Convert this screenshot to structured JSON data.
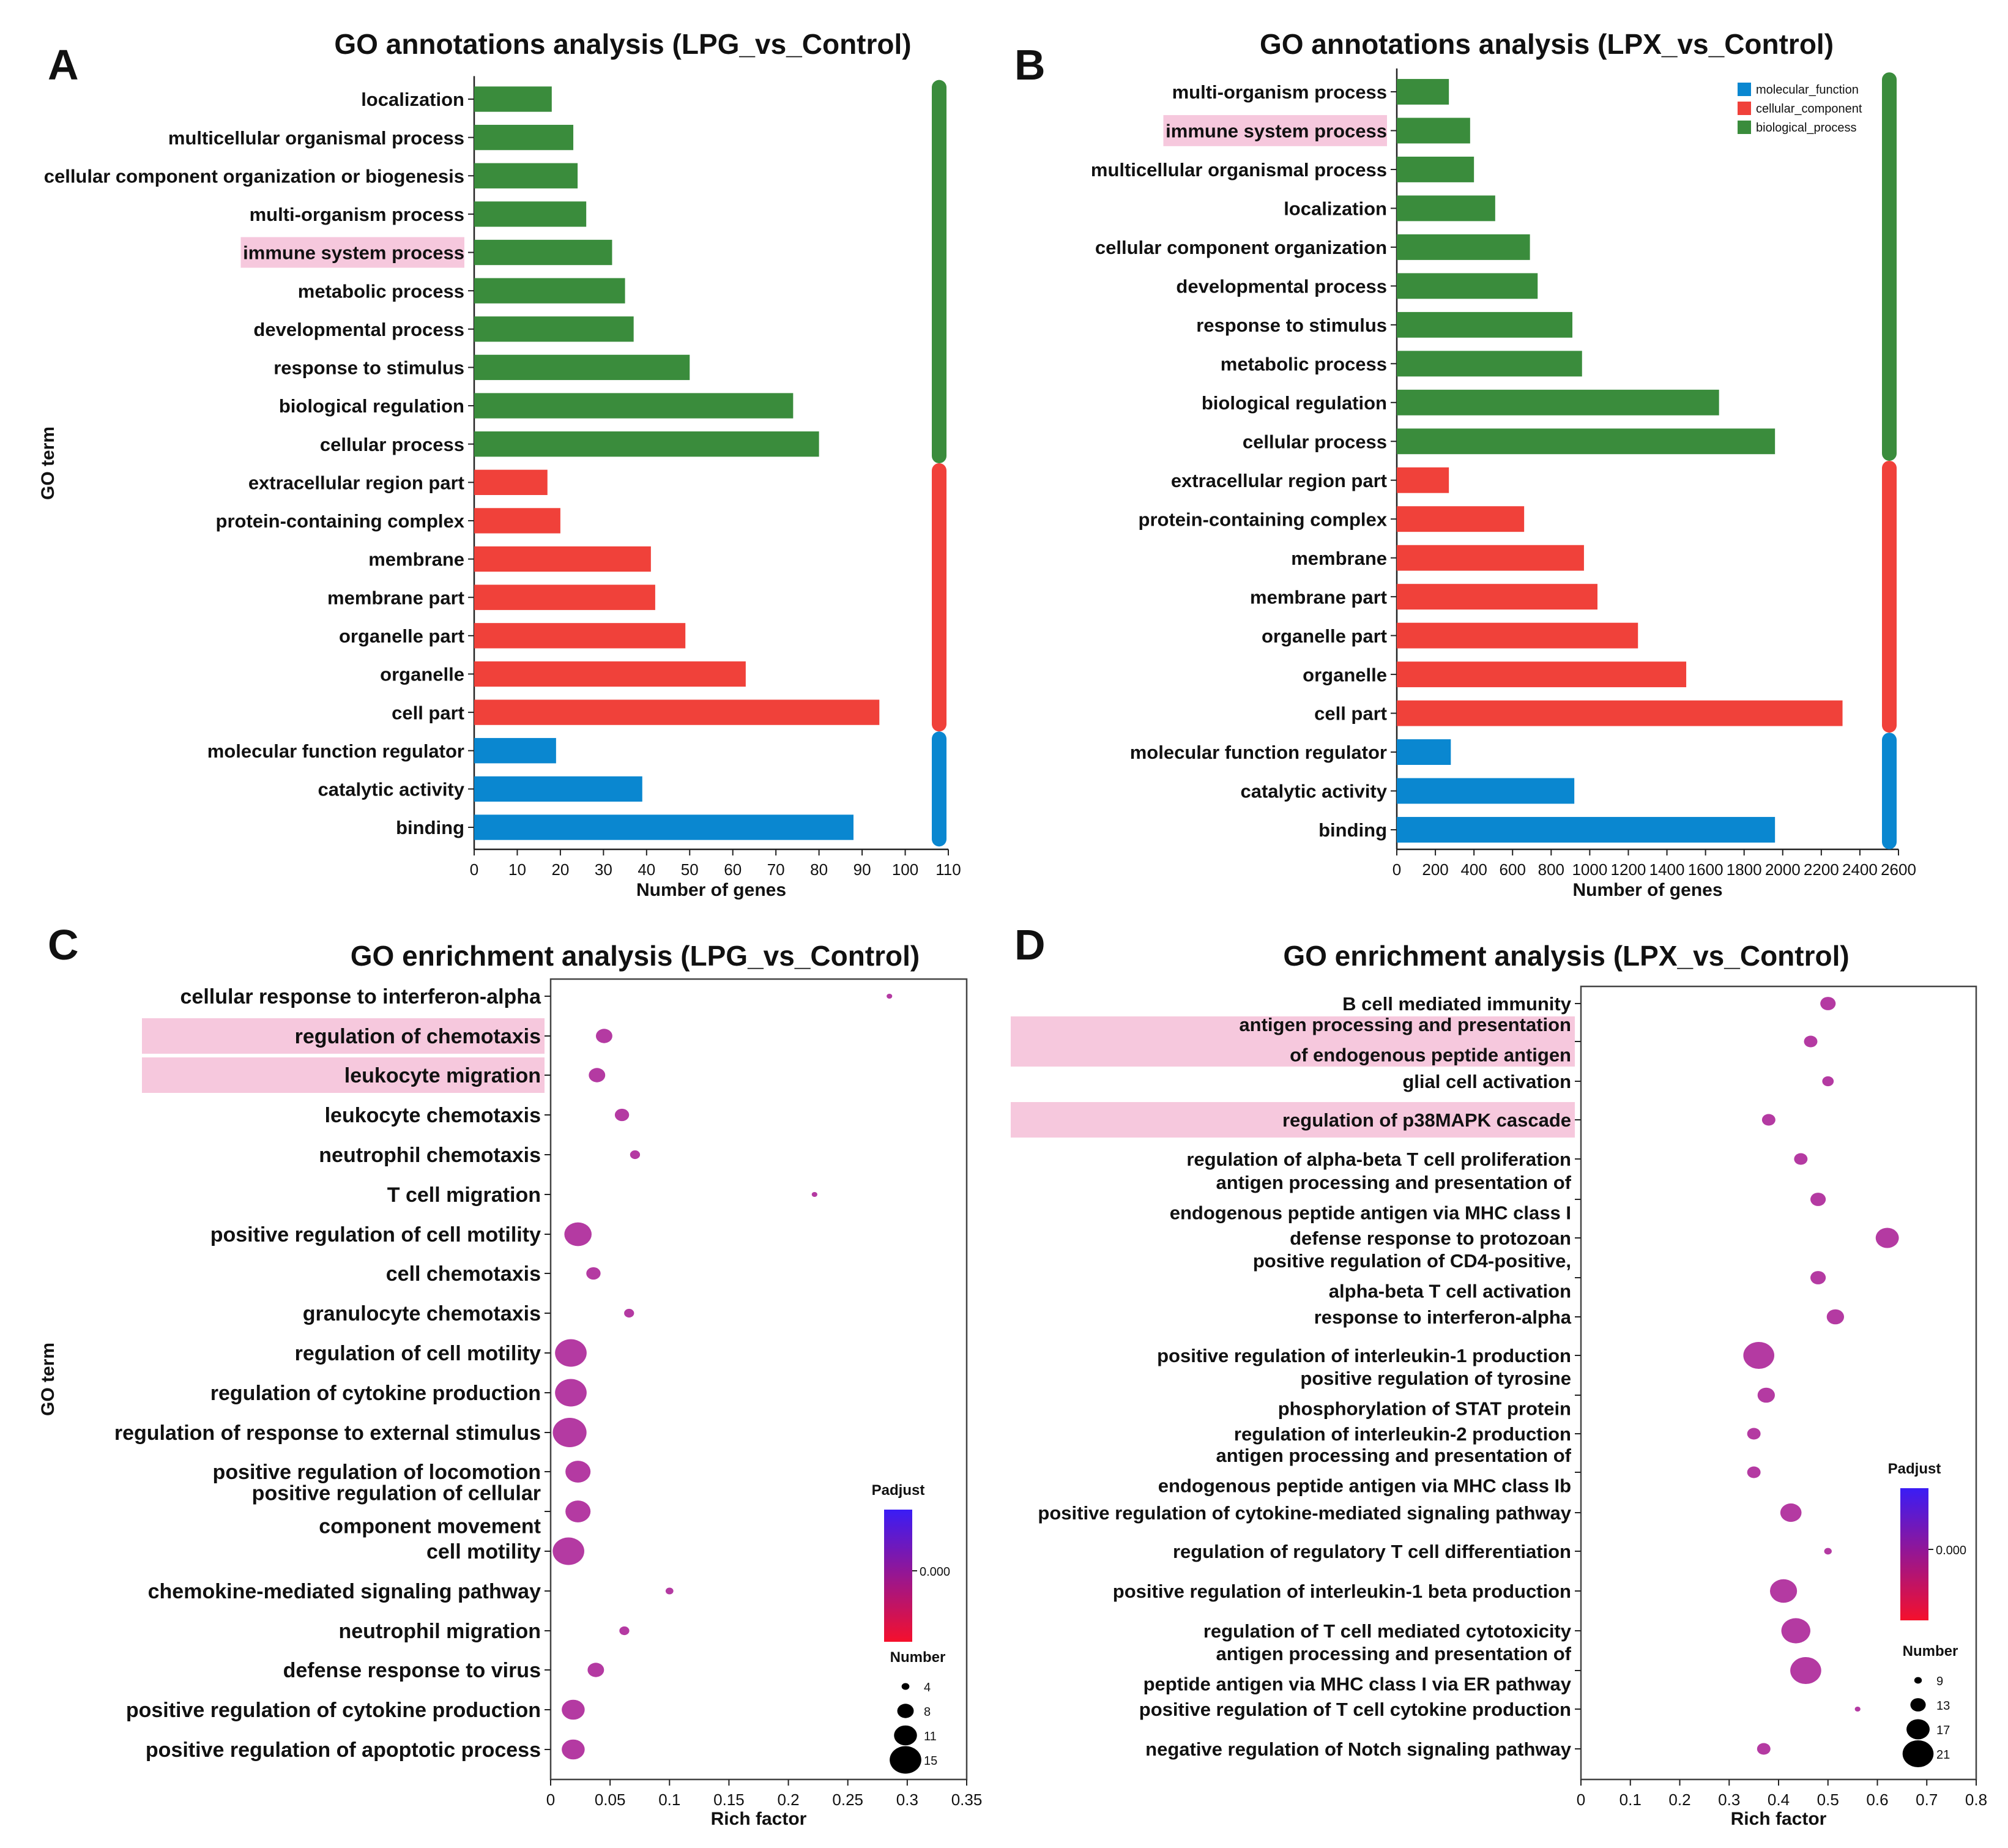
{
  "colors": {
    "molecular_function": "#0a87d0",
    "cellular_component": "#f0413a",
    "biological_process": "#3a8c3c",
    "highlight": "#f6c8dd",
    "dot": "#b43aa2",
    "padjust_top": "#3a1cf5",
    "padjust_bottom": "#f5102c"
  },
  "panels": {
    "A": "A",
    "B": "B",
    "C": "C",
    "D": "D"
  },
  "chart_data": [
    {
      "id": "A",
      "type": "bar",
      "orientation": "horizontal",
      "title": "GO annotations analysis (LPG_vs_Control)",
      "xlabel": "Number of genes",
      "ylabel": "GO term",
      "xlim": [
        0,
        110
      ],
      "xticks": [
        0,
        10,
        20,
        30,
        40,
        50,
        60,
        70,
        80,
        90,
        100,
        110
      ],
      "categories": [
        "localization",
        "multicellular organismal process",
        "cellular component organization or biogenesis",
        "multi-organism process",
        "immune system process",
        "metabolic process",
        "developmental process",
        "response to stimulus",
        "biological regulation",
        "cellular process",
        "extracellular region part",
        "protein-containing complex",
        "membrane",
        "membrane part",
        "organelle part",
        "organelle",
        "cell part",
        "molecular function regulator",
        "catalytic activity",
        "binding"
      ],
      "values": [
        18,
        23,
        24,
        26,
        32,
        35,
        37,
        50,
        74,
        80,
        17,
        20,
        41,
        42,
        49,
        63,
        94,
        19,
        39,
        88
      ],
      "groups": [
        "biological_process",
        "biological_process",
        "biological_process",
        "biological_process",
        "biological_process",
        "biological_process",
        "biological_process",
        "biological_process",
        "biological_process",
        "biological_process",
        "cellular_component",
        "cellular_component",
        "cellular_component",
        "cellular_component",
        "cellular_component",
        "cellular_component",
        "cellular_component",
        "molecular_function",
        "molecular_function",
        "molecular_function"
      ],
      "highlighted": [
        "immune system process"
      ]
    },
    {
      "id": "B",
      "type": "bar",
      "orientation": "horizontal",
      "title": "GO annotations analysis (LPX_vs_Control)",
      "xlabel": "Number of genes",
      "xlim": [
        0,
        2600
      ],
      "xticks": [
        0,
        200,
        400,
        600,
        800,
        1000,
        1200,
        1400,
        1600,
        1800,
        2000,
        2200,
        2400,
        2600
      ],
      "categories": [
        "multi-organism process",
        "immune system process",
        "multicellular organismal process",
        "localization",
        "cellular component organization",
        "developmental process",
        "response to stimulus",
        "metabolic process",
        "biological regulation",
        "cellular process",
        "extracellular region part",
        "protein-containing complex",
        "membrane",
        "membrane part",
        "organelle part",
        "organelle",
        "cell part",
        "molecular function regulator",
        "catalytic activity",
        "binding"
      ],
      "values": [
        270,
        380,
        400,
        510,
        690,
        730,
        910,
        960,
        1670,
        1960,
        270,
        660,
        970,
        1040,
        1250,
        1500,
        2310,
        280,
        920,
        1960
      ],
      "groups": [
        "biological_process",
        "biological_process",
        "biological_process",
        "biological_process",
        "biological_process",
        "biological_process",
        "biological_process",
        "biological_process",
        "biological_process",
        "biological_process",
        "cellular_component",
        "cellular_component",
        "cellular_component",
        "cellular_component",
        "cellular_component",
        "cellular_component",
        "cellular_component",
        "molecular_function",
        "molecular_function",
        "molecular_function"
      ],
      "highlighted": [
        "immune system process"
      ],
      "legend": [
        "molecular_function",
        "cellular_component",
        "biological_process"
      ],
      "legend_position": "top-right"
    },
    {
      "id": "C",
      "type": "scatter",
      "title": "GO enrichment analysis (LPG_vs_Control)",
      "xlabel": "Rich factor",
      "ylabel": "GO term",
      "xlim": [
        0,
        0.35
      ],
      "xticks": [
        0,
        0.05,
        0.1,
        0.15,
        0.2,
        0.25,
        0.3,
        0.35
      ],
      "tick_labels": [
        "0",
        "0.05",
        "0.1",
        "0.15",
        "0.2",
        "0.25",
        "0.3",
        "0.35"
      ],
      "terms": [
        {
          "lines": [
            "cellular response to interferon-alpha"
          ],
          "x": 0.285,
          "n": 3
        },
        {
          "lines": [
            "regulation of chemotaxis"
          ],
          "x": 0.045,
          "n": 8
        },
        {
          "lines": [
            "leukocyte migration"
          ],
          "x": 0.039,
          "n": 8
        },
        {
          "lines": [
            "leukocyte chemotaxis"
          ],
          "x": 0.06,
          "n": 7
        },
        {
          "lines": [
            "neutrophil chemotaxis"
          ],
          "x": 0.071,
          "n": 5
        },
        {
          "lines": [
            "T cell migration"
          ],
          "x": 0.222,
          "n": 3
        },
        {
          "lines": [
            "positive regulation of cell motility"
          ],
          "x": 0.023,
          "n": 13
        },
        {
          "lines": [
            "cell chemotaxis"
          ],
          "x": 0.036,
          "n": 7
        },
        {
          "lines": [
            "granulocyte chemotaxis"
          ],
          "x": 0.066,
          "n": 5
        },
        {
          "lines": [
            "regulation of cell motility"
          ],
          "x": 0.017,
          "n": 15
        },
        {
          "lines": [
            "regulation of cytokine production"
          ],
          "x": 0.017,
          "n": 15
        },
        {
          "lines": [
            "regulation of response to external stimulus"
          ],
          "x": 0.016,
          "n": 16
        },
        {
          "lines": [
            "positive regulation of locomotion"
          ],
          "x": 0.023,
          "n": 12
        },
        {
          "lines": [
            "positive regulation of cellular",
            "component movement"
          ],
          "x": 0.023,
          "n": 12
        },
        {
          "lines": [
            "cell motility"
          ],
          "x": 0.015,
          "n": 15
        },
        {
          "lines": [
            "chemokine-mediated signaling pathway"
          ],
          "x": 0.1,
          "n": 4
        },
        {
          "lines": [
            "neutrophil migration"
          ],
          "x": 0.062,
          "n": 5
        },
        {
          "lines": [
            "defense response to virus"
          ],
          "x": 0.038,
          "n": 8
        },
        {
          "lines": [
            "positive regulation of cytokine production"
          ],
          "x": 0.019,
          "n": 11
        },
        {
          "lines": [
            "positive regulation of apoptotic process"
          ],
          "x": 0.019,
          "n": 11
        }
      ],
      "highlighted_rows": [
        1,
        2
      ],
      "colorbar": {
        "title": "Padjust",
        "label": "0.000"
      },
      "size_legend": {
        "title": "Number",
        "values": [
          4,
          8,
          11,
          15
        ]
      }
    },
    {
      "id": "D",
      "type": "scatter",
      "title": "GO enrichment analysis (LPX_vs_Control)",
      "xlabel": "Rich factor",
      "xlim": [
        0,
        0.8
      ],
      "xticks": [
        0,
        0.1,
        0.2,
        0.3,
        0.4,
        0.5,
        0.6,
        0.7,
        0.8
      ],
      "tick_labels": [
        "0",
        "0.1",
        "0.2",
        "0.3",
        "0.4",
        "0.5",
        "0.6",
        "0.7",
        "0.8"
      ],
      "terms": [
        {
          "lines": [
            "B cell mediated immunity"
          ],
          "x": 0.5,
          "n": 13
        },
        {
          "lines": [
            "antigen processing and presentation",
            "of endogenous peptide antigen"
          ],
          "x": 0.465,
          "n": 12
        },
        {
          "lines": [
            "glial cell activation"
          ],
          "x": 0.5,
          "n": 11
        },
        {
          "lines": [
            "regulation of p38MAPK cascade"
          ],
          "x": 0.38,
          "n": 12
        },
        {
          "lines": [
            "regulation of alpha-beta T cell proliferation"
          ],
          "x": 0.445,
          "n": 12
        },
        {
          "lines": [
            "antigen processing and presentation of",
            "endogenous peptide antigen via MHC class I"
          ],
          "x": 0.48,
          "n": 13
        },
        {
          "lines": [
            "defense response to protozoan"
          ],
          "x": 0.62,
          "n": 17
        },
        {
          "lines": [
            "positive regulation of CD4-positive,",
            "alpha-beta T cell activation"
          ],
          "x": 0.48,
          "n": 13
        },
        {
          "lines": [
            "response to interferon-alpha"
          ],
          "x": 0.515,
          "n": 14
        },
        {
          "lines": [
            "positive regulation of interleukin-1 production"
          ],
          "x": 0.36,
          "n": 21
        },
        {
          "lines": [
            "positive regulation of tyrosine",
            "phosphorylation of STAT protein"
          ],
          "x": 0.375,
          "n": 14
        },
        {
          "lines": [
            "regulation of interleukin-2 production"
          ],
          "x": 0.35,
          "n": 12
        },
        {
          "lines": [
            "antigen processing and presentation of",
            "endogenous peptide antigen via MHC class Ib"
          ],
          "x": 0.35,
          "n": 12
        },
        {
          "lines": [
            "positive regulation of cytokine-mediated signaling pathway"
          ],
          "x": 0.425,
          "n": 16
        },
        {
          "lines": [
            "regulation of regulatory T cell differentiation"
          ],
          "x": 0.5,
          "n": 9
        },
        {
          "lines": [
            "positive regulation of interleukin-1 beta production"
          ],
          "x": 0.41,
          "n": 19
        },
        {
          "lines": [
            "regulation of T cell mediated cytotoxicity"
          ],
          "x": 0.435,
          "n": 20
        },
        {
          "lines": [
            "antigen processing and presentation of",
            "peptide antigen via MHC class I via ER pathway"
          ],
          "x": 0.455,
          "n": 21
        },
        {
          "lines": [
            "positive regulation of T cell cytokine production"
          ],
          "x": 0.56,
          "n": 8
        },
        {
          "lines": [
            "negative regulation of Notch signaling pathway"
          ],
          "x": 0.37,
          "n": 12
        }
      ],
      "highlighted_rows": [
        1,
        3
      ],
      "colorbar": {
        "title": "Padjust",
        "label": "0.000"
      },
      "size_legend": {
        "title": "Number",
        "values": [
          9,
          13,
          17,
          21
        ]
      }
    }
  ]
}
